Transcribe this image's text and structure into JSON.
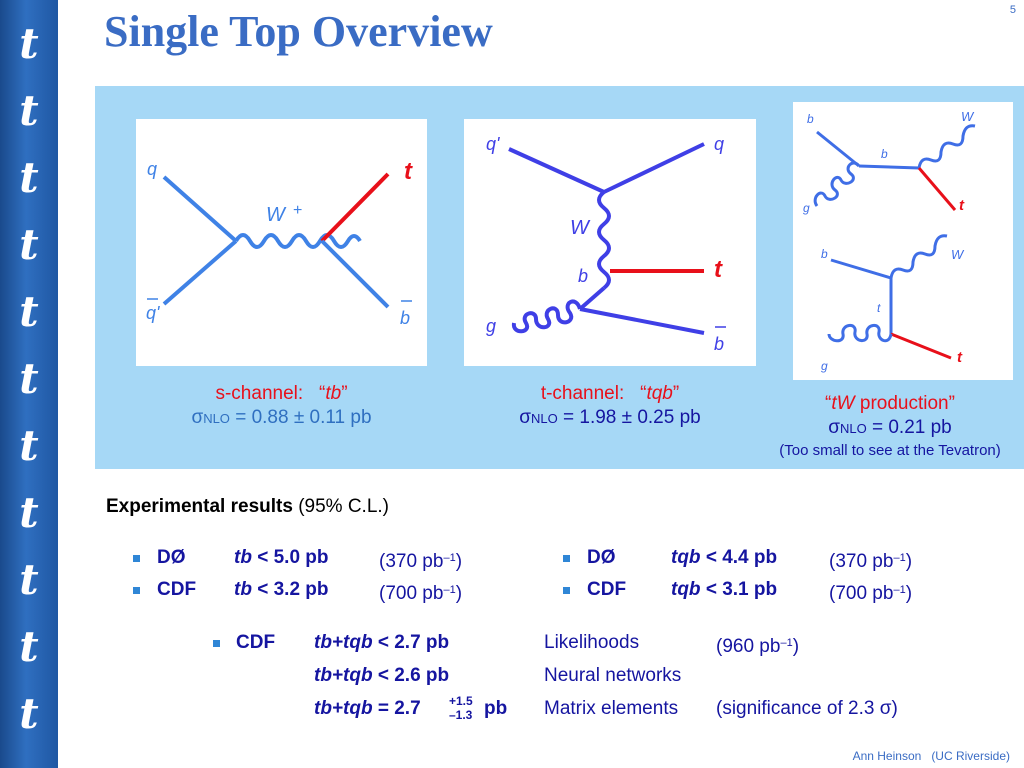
{
  "sidebar": {
    "glyph": "t",
    "count": 11
  },
  "slide": {
    "title": "Single Top Overview",
    "page_number": "5"
  },
  "diagrams": {
    "s_channel": {
      "labels": {
        "q": "q",
        "qbar_prime": "q'",
        "W": "W",
        "W_charge": "+",
        "t": "t",
        "bbar": "b"
      }
    },
    "t_channel": {
      "labels": {
        "q_prime": "q'",
        "q": "q",
        "W": "W",
        "b": "b",
        "t": "t",
        "g": "g",
        "bbar": "b"
      }
    },
    "tW": {
      "labels": {
        "b_top": "b",
        "W_top": "W",
        "b_mid": "b",
        "g_top": "g",
        "t_top": "t",
        "b_bot": "b",
        "W_bot": "W",
        "t_mid": "t",
        "g_bot": "g",
        "t_bot": "t"
      }
    }
  },
  "captions": {
    "s_channel": {
      "name": "s-channel:",
      "quote_open": "“",
      "process": "tb",
      "quote_close": "”",
      "sigma": "σ",
      "sub": "NLO",
      "value": "= 0.88 ± 0.11 pb"
    },
    "t_channel": {
      "name": "t-channel:",
      "quote_open": "“",
      "process": "tqb",
      "quote_close": "”",
      "sigma": "σ",
      "sub": "NLO",
      "value": "= 1.98 ± 0.25 pb"
    },
    "tW": {
      "quote_open": "“",
      "process": "tW",
      "text": " production”",
      "sigma": "σ",
      "sub": "NLO",
      "value": "= 0.21 pb",
      "note": "(Too small to see at the Tevatron)"
    }
  },
  "results": {
    "heading_bold": "Experimental results",
    "heading_rest": "(95% C.L.)",
    "left": [
      {
        "exp": "DØ",
        "proc": "tb",
        "limit": "< 5.0 pb",
        "lumi": "(370 pb",
        "lumi_exp": "–1",
        "lumi_close": ")"
      },
      {
        "exp": "CDF",
        "proc": "tb",
        "limit": "< 3.2 pb",
        "lumi": "(700 pb",
        "lumi_exp": "–1",
        "lumi_close": ")"
      }
    ],
    "right": [
      {
        "exp": "DØ",
        "proc": "tqb",
        "limit": "< 4.4 pb",
        "lumi": "(370 pb",
        "lumi_exp": "–1",
        "lumi_close": ")"
      },
      {
        "exp": "CDF",
        "proc": "tqb",
        "limit": "< 3.1 pb",
        "lumi": "(700 pb",
        "lumi_exp": "–1",
        "lumi_close": ")"
      }
    ],
    "combined": {
      "exp": "CDF",
      "rows": [
        {
          "proc": "tb+tqb",
          "value": "< 2.7 pb",
          "method": "Likelihoods",
          "extra": "(960 pb",
          "extra_exp": "–1",
          "extra_close": ")"
        },
        {
          "proc": "tb+tqb",
          "value": "< 2.6 pb",
          "method": "Neural networks"
        },
        {
          "proc": "tb+tqb",
          "value": "= 2.7",
          "err_up": "+1.5",
          "err_down": "–1.3",
          "unit": "pb",
          "method": "Matrix elements",
          "extra": "(significance of 2.3 ",
          "extra_sigma": "σ",
          "extra_close": ")"
        }
      ]
    }
  },
  "footer": {
    "author": "Ann Heinson",
    "affiliation": "(UC Riverside)"
  },
  "colors": {
    "title": "#3a6cc4",
    "panel": "#a6d8f6",
    "line_blue": "#3f82e6",
    "line_red": "#e8101a",
    "navy": "#1515a0",
    "caption_red": "#e8101a"
  }
}
